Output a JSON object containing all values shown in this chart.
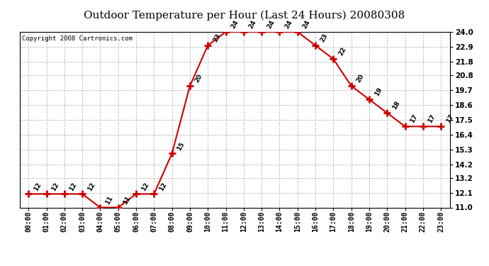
{
  "title": "Outdoor Temperature per Hour (Last 24 Hours) 20080308",
  "copyright": "Copyright 2008 Cartronics.com",
  "hours": [
    "00:00",
    "01:00",
    "02:00",
    "03:00",
    "04:00",
    "05:00",
    "06:00",
    "07:00",
    "08:00",
    "09:00",
    "10:00",
    "11:00",
    "12:00",
    "13:00",
    "14:00",
    "15:00",
    "16:00",
    "17:00",
    "18:00",
    "19:00",
    "20:00",
    "21:00",
    "22:00",
    "23:00"
  ],
  "temperatures": [
    12,
    12,
    12,
    12,
    11,
    11,
    12,
    12,
    15,
    20,
    23,
    24,
    24,
    24,
    24,
    24,
    23,
    22,
    20,
    19,
    18,
    17,
    17,
    17
  ],
  "ylim": [
    11.0,
    24.0
  ],
  "yticks": [
    11.0,
    12.1,
    13.2,
    14.2,
    15.3,
    16.4,
    17.5,
    18.6,
    19.7,
    20.8,
    21.8,
    22.9,
    24.0
  ],
  "line_color": "#cc0000",
  "marker_color": "#cc0000",
  "bg_color": "#ffffff",
  "grid_color": "#bbbbbb",
  "title_fontsize": 11,
  "copyright_fontsize": 6.5,
  "label_fontsize": 6.5,
  "tick_fontsize": 7,
  "ytick_fontsize": 7.5
}
